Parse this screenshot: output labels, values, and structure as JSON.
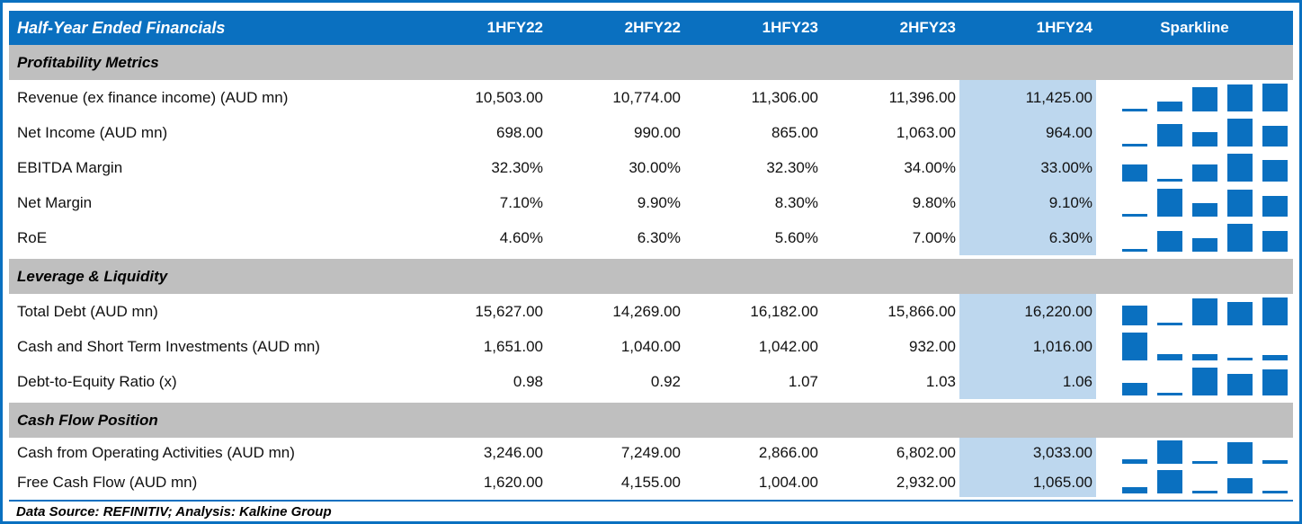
{
  "colors": {
    "accent_blue": "#0a70c0",
    "section_gray": "#bfbfbf",
    "highlight_blue": "#bdd7ee",
    "header_text": "#ffffff",
    "body_text": "#111111"
  },
  "header": {
    "title": "Half-Year Ended Financials",
    "columns": [
      "1HFY22",
      "2HFY22",
      "1HFY23",
      "2HFY23",
      "1HFY24"
    ],
    "sparkline_label": "Sparkline"
  },
  "sections": [
    {
      "title": "Profitability Metrics",
      "rows": [
        {
          "label": "Revenue (ex finance income) (AUD mn)",
          "values": [
            "10,503.00",
            "10,774.00",
            "11,306.00",
            "11,396.00",
            "11,425.00"
          ],
          "numeric": [
            10503,
            10774,
            11306,
            11396,
            11425
          ]
        },
        {
          "label": "Net Income (AUD mn)",
          "values": [
            "698.00",
            "990.00",
            "865.00",
            "1,063.00",
            "964.00"
          ],
          "numeric": [
            698,
            990,
            865,
            1063,
            964
          ]
        },
        {
          "label": "EBITDA Margin",
          "values": [
            "32.30%",
            "30.00%",
            "32.30%",
            "34.00%",
            "33.00%"
          ],
          "numeric": [
            32.3,
            30,
            32.3,
            34,
            33
          ]
        },
        {
          "label": "Net Margin",
          "values": [
            "7.10%",
            "9.90%",
            "8.30%",
            "9.80%",
            "9.10%"
          ],
          "numeric": [
            7.1,
            9.9,
            8.3,
            9.8,
            9.1
          ]
        },
        {
          "label": "RoE",
          "values": [
            "4.60%",
            "6.30%",
            "5.60%",
            "7.00%",
            "6.30%"
          ],
          "numeric": [
            4.6,
            6.3,
            5.6,
            7.0,
            6.3
          ]
        }
      ]
    },
    {
      "title": "Leverage & Liquidity",
      "rows": [
        {
          "label": "Total Debt (AUD mn)",
          "values": [
            "15,627.00",
            "14,269.00",
            "16,182.00",
            "15,866.00",
            "16,220.00"
          ],
          "numeric": [
            15627,
            14269,
            16182,
            15866,
            16220
          ]
        },
        {
          "label": "Cash and Short Term Investments (AUD mn)",
          "values": [
            "1,651.00",
            "1,040.00",
            "1,042.00",
            "932.00",
            "1,016.00"
          ],
          "numeric": [
            1651,
            1040,
            1042,
            932,
            1016
          ]
        },
        {
          "label": "Debt-to-Equity Ratio (x)",
          "values": [
            "0.98",
            "0.92",
            "1.07",
            "1.03",
            "1.06"
          ],
          "numeric": [
            0.98,
            0.92,
            1.07,
            1.03,
            1.06
          ]
        }
      ]
    },
    {
      "title": "Cash Flow Position",
      "rows": [
        {
          "label": "Cash from Operating Activities (AUD mn)",
          "values": [
            "3,246.00",
            "7,249.00",
            "2,866.00",
            "6,802.00",
            "3,033.00"
          ],
          "numeric": [
            3246,
            7249,
            2866,
            6802,
            3033
          ]
        },
        {
          "label": "Free Cash Flow (AUD mn)",
          "values": [
            "1,620.00",
            "4,155.00",
            "1,004.00",
            "2,932.00",
            "1,065.00"
          ],
          "numeric": [
            1620,
            4155,
            1004,
            2932,
            1065
          ]
        }
      ]
    }
  ],
  "footer": {
    "text": "Data Source: REFINITIV; Analysis: Kalkine Group"
  }
}
